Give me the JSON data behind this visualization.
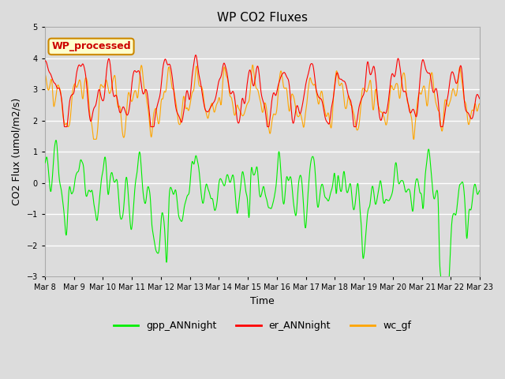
{
  "title": "WP CO2 Fluxes",
  "xlabel": "Time",
  "ylabel": "CO2 Flux (umol/m2/s)",
  "ylim": [
    -3.0,
    5.0
  ],
  "yticks": [
    -3.0,
    -2.0,
    -1.0,
    0.0,
    1.0,
    2.0,
    3.0,
    4.0,
    5.0
  ],
  "start_day": 8,
  "end_day": 23,
  "n_points": 1440,
  "colors": {
    "gpp": "#00EE00",
    "er": "#FF0000",
    "wc": "#FFA500"
  },
  "legend_labels": [
    "gpp_ANNnight",
    "er_ANNnight",
    "wc_gf"
  ],
  "annotation_text": "WP_processed",
  "annotation_facecolor": "#FFFFCC",
  "annotation_edgecolor": "#CC8800",
  "annotation_textcolor": "#CC0000",
  "bg_color": "#DCDCDC",
  "grid_color": "#FFFFFF",
  "fig_facecolor": "#DCDCDC"
}
